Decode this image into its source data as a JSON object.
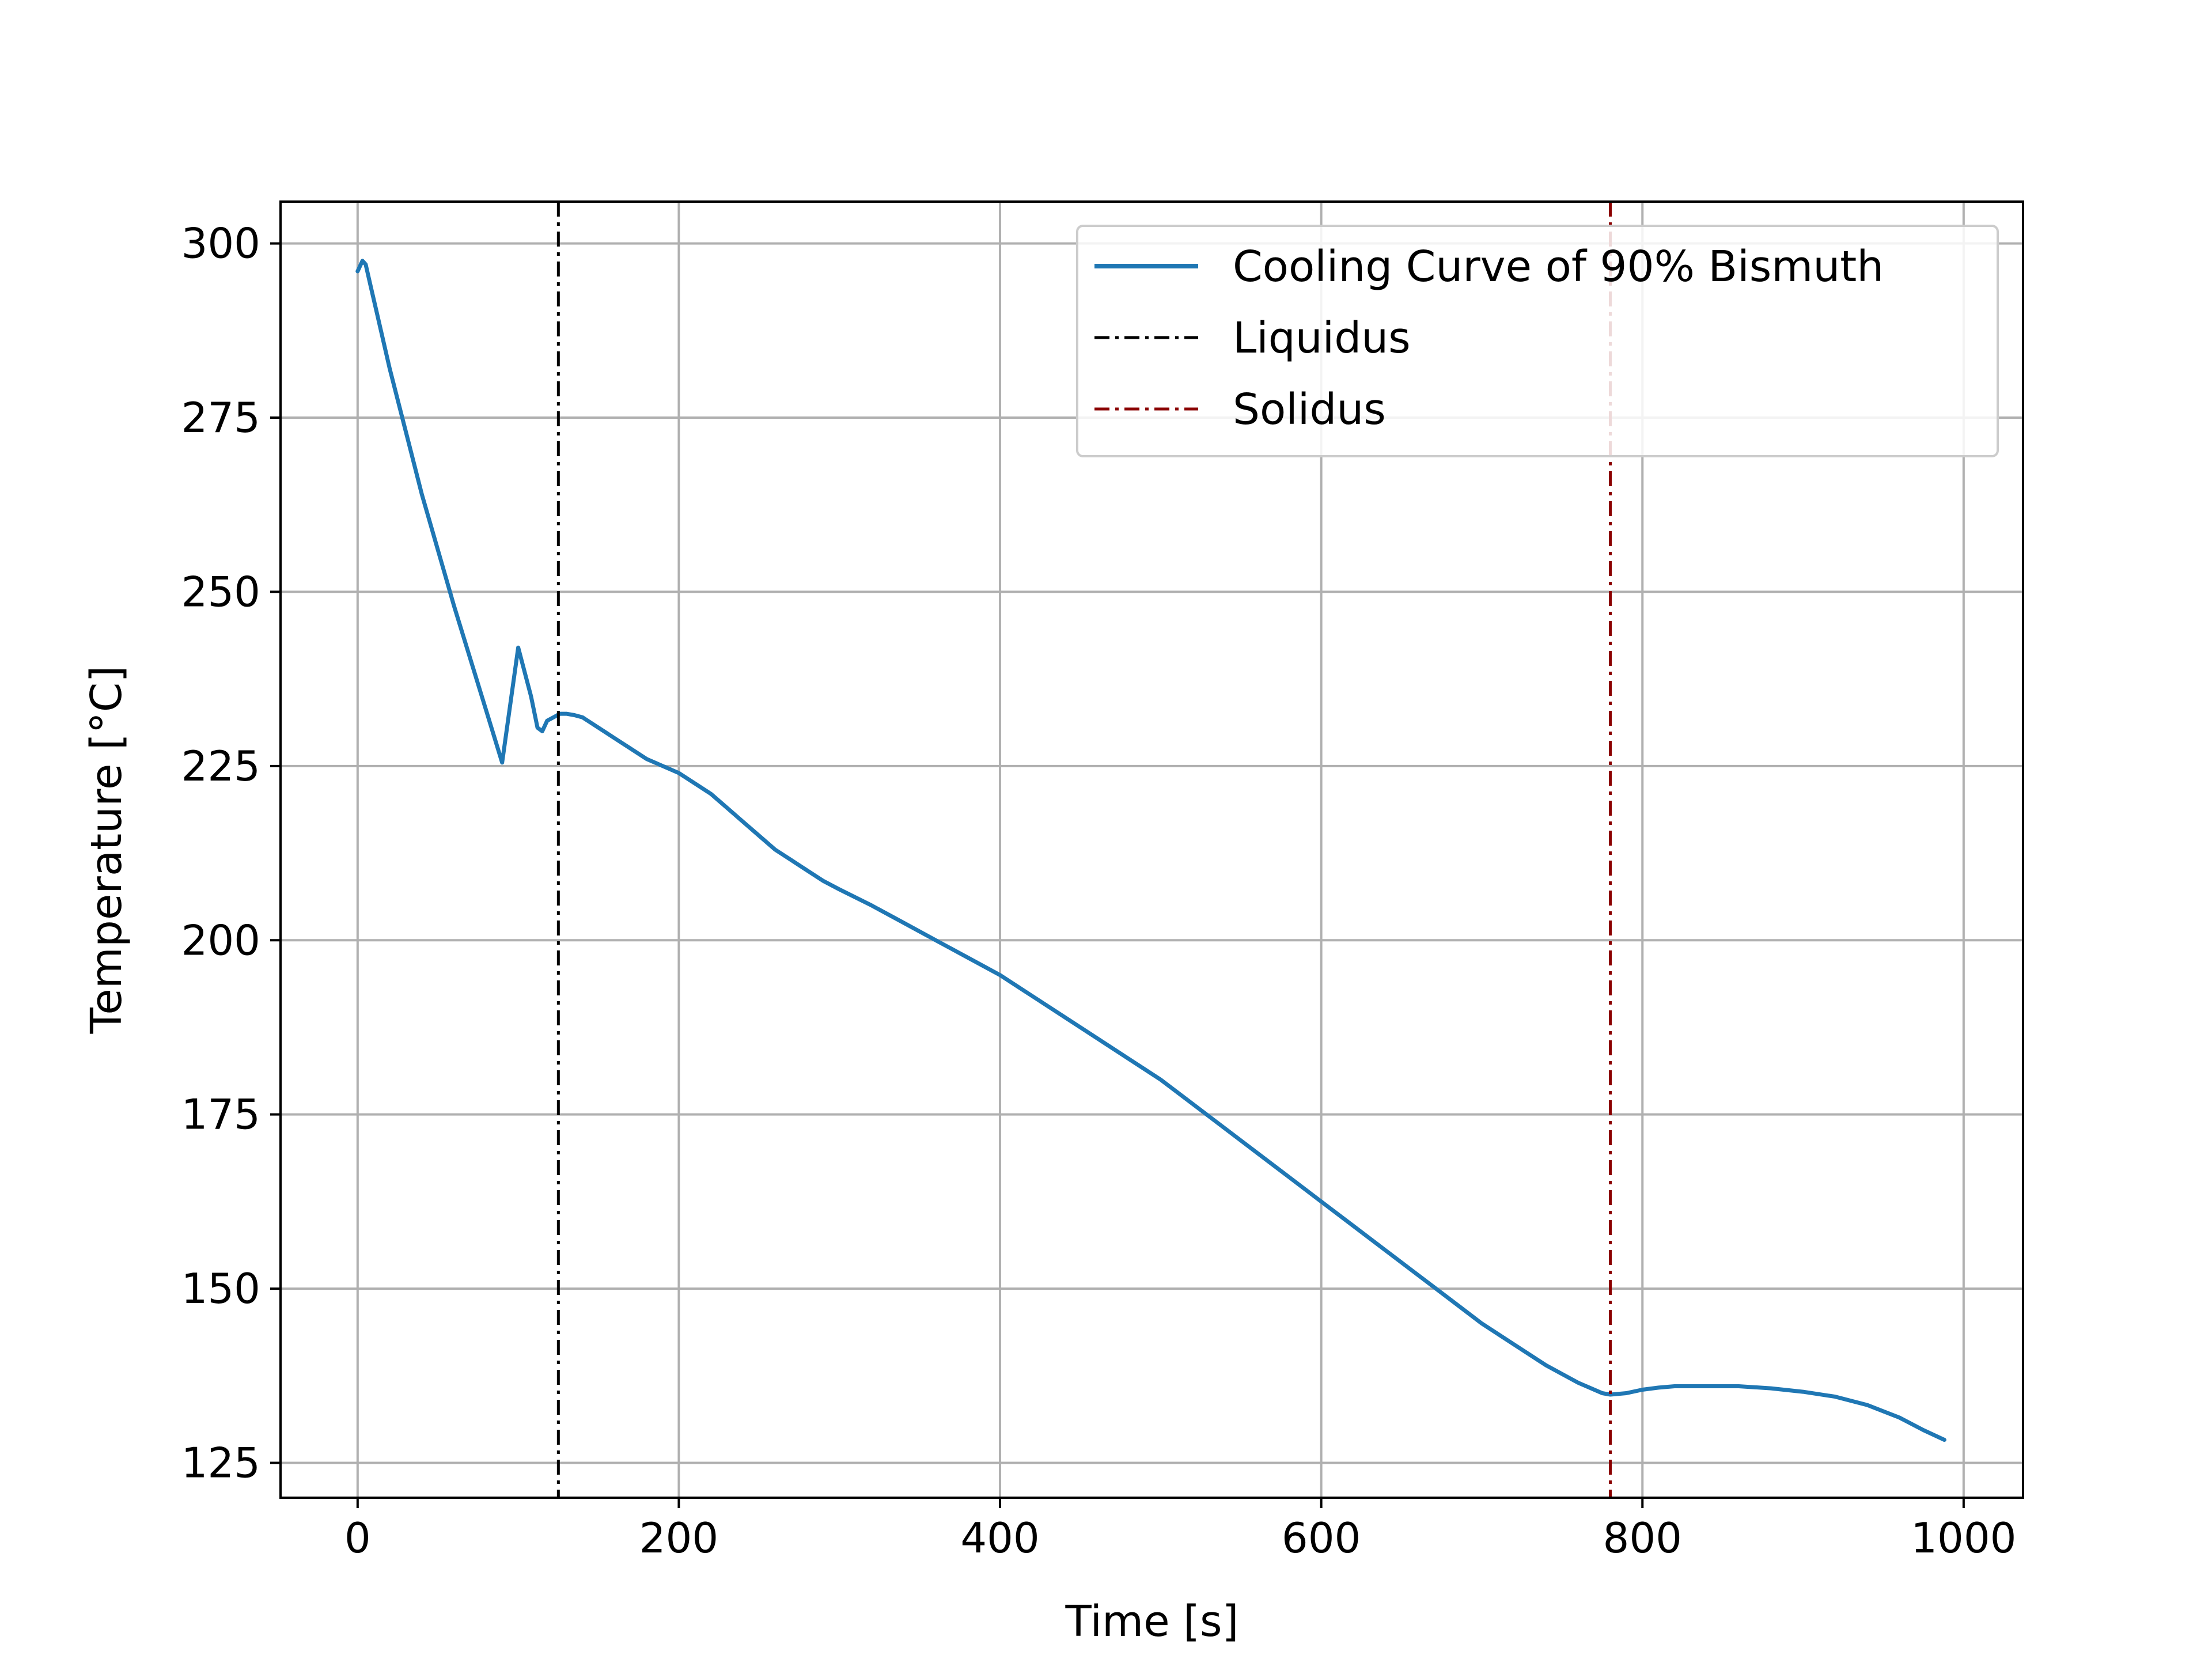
{
  "chart_data": {
    "type": "line",
    "title": "",
    "xlabel": "Time   [s]",
    "ylabel": "Temperature   [°C]",
    "xlim": [
      -48,
      1037
    ],
    "ylim": [
      120,
      306
    ],
    "x_ticks": [
      0,
      200,
      400,
      600,
      800,
      1000
    ],
    "x_tick_labels": [
      "0",
      "200",
      "400",
      "600",
      "800",
      "1000"
    ],
    "y_ticks": [
      125,
      150,
      175,
      200,
      225,
      250,
      275,
      300
    ],
    "y_tick_labels": [
      "125",
      "150",
      "175",
      "200",
      "225",
      "250",
      "275",
      "300"
    ],
    "grid": true,
    "legend_position": "top-right",
    "series": [
      {
        "name": "Cooling Curve of 90% Bismuth",
        "kind": "line",
        "color": "#1f77b4",
        "x": [
          0,
          3,
          5,
          8,
          12,
          20,
          30,
          40,
          50,
          60,
          70,
          80,
          90,
          100,
          108,
          112,
          115,
          118,
          122,
          126,
          130,
          135,
          140,
          150,
          160,
          170,
          180,
          190,
          200,
          210,
          220,
          230,
          240,
          250,
          260,
          270,
          280,
          290,
          300,
          320,
          340,
          360,
          380,
          400,
          420,
          440,
          460,
          480,
          500,
          520,
          540,
          560,
          580,
          600,
          620,
          640,
          660,
          680,
          700,
          720,
          740,
          760,
          770,
          775,
          780,
          790,
          800,
          810,
          820,
          840,
          860,
          880,
          900,
          920,
          940,
          960,
          975,
          988
        ],
        "y": [
          296,
          297.5,
          297,
          294,
          290,
          282,
          273,
          264,
          256,
          248,
          240.5,
          233,
          225.5,
          242,
          235,
          230.5,
          230,
          231.5,
          232,
          232.5,
          232.5,
          232.3,
          232,
          230.5,
          229,
          227.5,
          226,
          225,
          224,
          222.5,
          221,
          219,
          217,
          215,
          213,
          211.5,
          210,
          208.5,
          207.3,
          205,
          202.5,
          200,
          197.5,
          195,
          192,
          189,
          186,
          183,
          180,
          176.5,
          173,
          169.5,
          166,
          162.5,
          159,
          155.5,
          152,
          148.5,
          145,
          142,
          139,
          136.5,
          135.5,
          135,
          134.8,
          135,
          135.5,
          135.8,
          136,
          136,
          136,
          135.7,
          135.2,
          134.5,
          133.3,
          131.5,
          129.7,
          128.3
        ]
      },
      {
        "name": "Liquidus",
        "kind": "vline",
        "color": "#000000",
        "x": 125
      },
      {
        "name": "Solidus",
        "kind": "vline",
        "color": "#8b0000",
        "x": 780
      }
    ]
  }
}
